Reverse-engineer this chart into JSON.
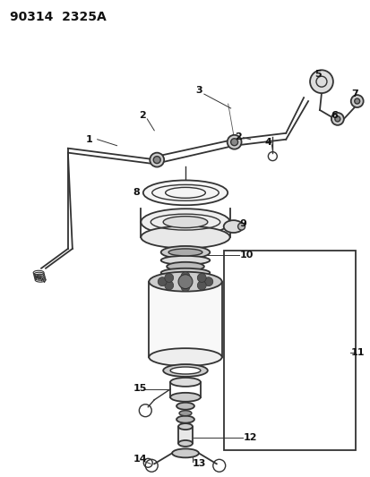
{
  "title": "90314  2325A",
  "bg_color": "#ffffff",
  "line_color": "#333333",
  "label_color": "#111111",
  "fig_width": 4.14,
  "fig_height": 5.33
}
